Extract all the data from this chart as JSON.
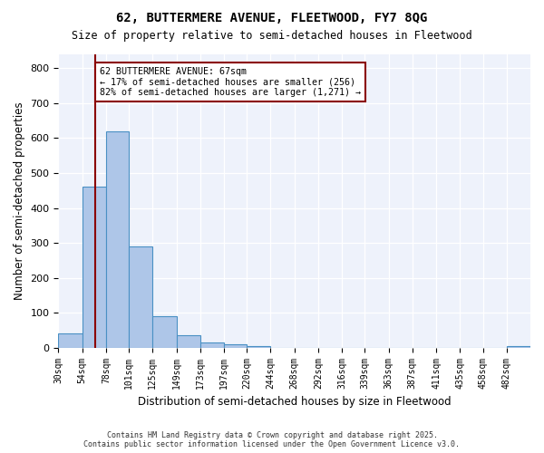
{
  "title1": "62, BUTTERMERE AVENUE, FLEETWOOD, FY7 8QG",
  "title2": "Size of property relative to semi-detached houses in Fleetwood",
  "xlabel": "Distribution of semi-detached houses by size in Fleetwood",
  "ylabel": "Number of semi-detached properties",
  "bin_edges": [
    30,
    54,
    78,
    101,
    125,
    149,
    173,
    197,
    220,
    244,
    268,
    292,
    316,
    339,
    363,
    387,
    411,
    435,
    458,
    482,
    506
  ],
  "bin_labels": [
    "30sqm",
    "54sqm",
    "78sqm",
    "101sqm",
    "125sqm",
    "149sqm",
    "173sqm",
    "197sqm",
    "220sqm",
    "244sqm",
    "268sqm",
    "292sqm",
    "316sqm",
    "339sqm",
    "363sqm",
    "387sqm",
    "411sqm",
    "435sqm",
    "458sqm",
    "482sqm"
  ],
  "counts": [
    40,
    460,
    620,
    290,
    90,
    35,
    15,
    10,
    5,
    0,
    0,
    0,
    0,
    0,
    0,
    0,
    0,
    0,
    0,
    5
  ],
  "property_size": 67,
  "property_label": "62 BUTTERMERE AVENUE: 67sqm",
  "pct_smaller": 17,
  "pct_larger": 82,
  "count_smaller": 256,
  "count_larger": 1271,
  "bar_color": "#aec6e8",
  "bar_edge_color": "#4a90c4",
  "vline_color": "#8b0000",
  "annotation_box_color": "#ffffff",
  "annotation_box_edge": "#8b0000",
  "ylim": [
    0,
    840
  ],
  "yticks": [
    0,
    100,
    200,
    300,
    400,
    500,
    600,
    700,
    800
  ],
  "bg_color": "#eef2fb",
  "footer1": "Contains HM Land Registry data © Crown copyright and database right 2025.",
  "footer2": "Contains public sector information licensed under the Open Government Licence v3.0."
}
